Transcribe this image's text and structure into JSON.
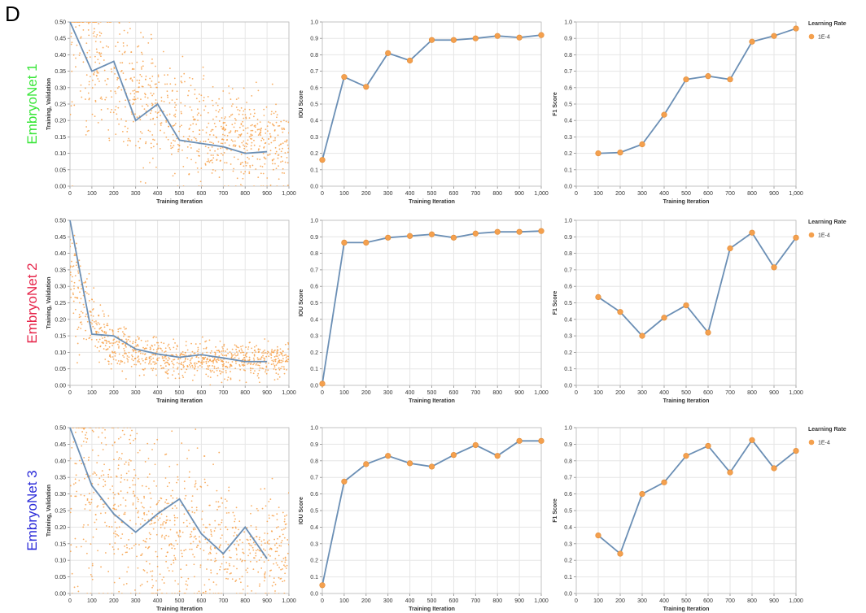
{
  "panel_letter": "D",
  "rows": [
    {
      "label": "EmbryoNet 1",
      "color": "#39e639"
    },
    {
      "label": "EmbryoNet 2",
      "color": "#e6254a"
    },
    {
      "label": "EmbryoNet 3",
      "color": "#2b2bd9"
    }
  ],
  "legend": {
    "title": "Learning Rate",
    "entry": "1E-4",
    "marker_color": "#f4a04e"
  },
  "colors": {
    "line": "#6b8fb5",
    "marker": "#f4a04e",
    "scatter": "#f7a048",
    "grid": "#e6e6e6"
  },
  "chart_data": [
    {
      "type": "line",
      "row": 0,
      "xlabel": "Training Iteration",
      "ylabel": "Training, Validation",
      "xlim": [
        0,
        1000
      ],
      "ylim": [
        0,
        0.5
      ],
      "xticks": [
        "0",
        "100",
        "200",
        "300",
        "400",
        "500",
        "600",
        "700",
        "800",
        "900",
        "1,000"
      ],
      "yticks": [
        "0.00",
        "0.05",
        "0.10",
        "0.15",
        "0.20",
        "0.25",
        "0.30",
        "0.35",
        "0.40",
        "0.45",
        "0.50"
      ],
      "series": [
        {
          "x": [
            0,
            100,
            200,
            300,
            400,
            500,
            600,
            700,
            800,
            900
          ],
          "y": [
            0.5,
            0.35,
            0.38,
            0.2,
            0.25,
            0.14,
            0.13,
            0.12,
            0.1,
            0.105
          ]
        }
      ],
      "scatter": {
        "x0": 0,
        "x1": 1000,
        "a": 0.4,
        "b": 0.11,
        "k": 320,
        "noise": 0.05
      }
    },
    {
      "type": "line",
      "row": 0,
      "xlabel": "Training Iteration",
      "ylabel": "IOU Score",
      "xlim": [
        0,
        1000
      ],
      "ylim": [
        0,
        1.0
      ],
      "xticks": [
        "0",
        "100",
        "200",
        "300",
        "400",
        "500",
        "600",
        "700",
        "800",
        "900",
        "1,000"
      ],
      "yticks": [
        "0.0",
        "0.1",
        "0.2",
        "0.3",
        "0.4",
        "0.5",
        "0.6",
        "0.7",
        "0.8",
        "0.9",
        "1.0"
      ],
      "series": [
        {
          "x": [
            0,
            100,
            200,
            300,
            400,
            500,
            600,
            700,
            800,
            900,
            1000
          ],
          "y": [
            0.16,
            0.665,
            0.605,
            0.81,
            0.765,
            0.89,
            0.89,
            0.9,
            0.915,
            0.905,
            0.92
          ]
        }
      ]
    },
    {
      "type": "line",
      "row": 0,
      "xlabel": "Training Iteration",
      "ylabel": "F1 Score",
      "xlim": [
        0,
        1000
      ],
      "ylim": [
        0,
        1.0
      ],
      "xticks": [
        "0",
        "100",
        "200",
        "300",
        "400",
        "500",
        "600",
        "700",
        "800",
        "900",
        "1,000"
      ],
      "yticks": [
        "0.0",
        "0.1",
        "0.2",
        "0.3",
        "0.4",
        "0.5",
        "0.6",
        "0.7",
        "0.8",
        "0.9",
        "1.0"
      ],
      "series": [
        {
          "x": [
            100,
            200,
            300,
            400,
            500,
            600,
            700,
            800,
            900,
            1000
          ],
          "y": [
            0.2,
            0.205,
            0.255,
            0.435,
            0.65,
            0.67,
            0.65,
            0.88,
            0.915,
            0.96
          ]
        }
      ]
    },
    {
      "type": "line",
      "row": 1,
      "xlabel": "Training Iteration",
      "ylabel": "Training, Validation",
      "xlim": [
        0,
        1000
      ],
      "ylim": [
        0,
        0.5
      ],
      "xticks": [
        "0",
        "100",
        "200",
        "300",
        "400",
        "500",
        "600",
        "700",
        "800",
        "900",
        "1,000"
      ],
      "yticks": [
        "0.00",
        "0.05",
        "0.10",
        "0.15",
        "0.20",
        "0.25",
        "0.30",
        "0.35",
        "0.40",
        "0.45",
        "0.50"
      ],
      "series": [
        {
          "x": [
            0,
            100,
            200,
            300,
            400,
            500,
            600,
            700,
            800,
            900
          ],
          "y": [
            0.5,
            0.155,
            0.15,
            0.11,
            0.095,
            0.085,
            0.093,
            0.083,
            0.072,
            0.072
          ]
        }
      ],
      "scatter": {
        "x0": 0,
        "x1": 1000,
        "a": 0.3,
        "b": 0.075,
        "k": 110,
        "noise": 0.025
      }
    },
    {
      "type": "line",
      "row": 1,
      "xlabel": "Training Iteration",
      "ylabel": "IOU Score",
      "xlim": [
        0,
        1000
      ],
      "ylim": [
        0,
        1.0
      ],
      "xticks": [
        "0",
        "100",
        "200",
        "300",
        "400",
        "500",
        "600",
        "700",
        "800",
        "900",
        "1,000"
      ],
      "yticks": [
        "0.0",
        "0.1",
        "0.2",
        "0.3",
        "0.4",
        "0.5",
        "0.6",
        "0.7",
        "0.8",
        "0.9",
        "1.0"
      ],
      "series": [
        {
          "x": [
            0,
            100,
            200,
            300,
            400,
            500,
            600,
            700,
            800,
            900,
            1000
          ],
          "y": [
            0.01,
            0.865,
            0.865,
            0.895,
            0.905,
            0.915,
            0.895,
            0.92,
            0.93,
            0.93,
            0.935
          ]
        }
      ]
    },
    {
      "type": "line",
      "row": 1,
      "xlabel": "Training Iteration",
      "ylabel": "F1 Score",
      "xlim": [
        0,
        1000
      ],
      "ylim": [
        0,
        1.0
      ],
      "xticks": [
        "0",
        "100",
        "200",
        "300",
        "400",
        "500",
        "600",
        "700",
        "800",
        "900",
        "1,000"
      ],
      "yticks": [
        "0.0",
        "0.1",
        "0.2",
        "0.3",
        "0.4",
        "0.5",
        "0.6",
        "0.7",
        "0.8",
        "0.9",
        "1.0"
      ],
      "series": [
        {
          "x": [
            100,
            200,
            300,
            400,
            500,
            600,
            700,
            800,
            900,
            1000
          ],
          "y": [
            0.535,
            0.445,
            0.3,
            0.41,
            0.485,
            0.32,
            0.83,
            0.925,
            0.715,
            0.895
          ]
        }
      ]
    },
    {
      "type": "line",
      "row": 2,
      "xlabel": "Training Iteration",
      "ylabel": "Training, Validation",
      "xlim": [
        0,
        1000
      ],
      "ylim": [
        0,
        0.5
      ],
      "xticks": [
        "0",
        "100",
        "200",
        "300",
        "400",
        "500",
        "600",
        "700",
        "800",
        "900",
        "1,000"
      ],
      "yticks": [
        "0.00",
        "0.05",
        "0.10",
        "0.15",
        "0.20",
        "0.25",
        "0.30",
        "0.35",
        "0.40",
        "0.45",
        "0.50"
      ],
      "series": [
        {
          "x": [
            0,
            100,
            200,
            300,
            400,
            500,
            600,
            700,
            800,
            900
          ],
          "y": [
            0.5,
            0.325,
            0.24,
            0.185,
            0.24,
            0.285,
            0.18,
            0.12,
            0.2,
            0.105
          ]
        }
      ],
      "scatter": {
        "x0": 0,
        "x1": 1000,
        "a": 0.3,
        "b": 0.12,
        "k": 300,
        "noise": 0.07
      }
    },
    {
      "type": "line",
      "row": 2,
      "xlabel": "Training Iteration",
      "ylabel": "IOU Score",
      "xlim": [
        0,
        1000
      ],
      "ylim": [
        0,
        1.0
      ],
      "xticks": [
        "0",
        "100",
        "200",
        "300",
        "400",
        "500",
        "600",
        "700",
        "800",
        "900",
        "1,000"
      ],
      "yticks": [
        "0.0",
        "0.1",
        "0.2",
        "0.3",
        "0.4",
        "0.5",
        "0.6",
        "0.7",
        "0.8",
        "0.9",
        "1.0"
      ],
      "series": [
        {
          "x": [
            0,
            100,
            200,
            300,
            400,
            500,
            600,
            700,
            800,
            900,
            1000
          ],
          "y": [
            0.05,
            0.675,
            0.78,
            0.83,
            0.785,
            0.765,
            0.835,
            0.895,
            0.83,
            0.92,
            0.92
          ]
        }
      ]
    },
    {
      "type": "line",
      "row": 2,
      "xlabel": "Training Iteration",
      "ylabel": "F1 Score",
      "xlim": [
        0,
        1000
      ],
      "ylim": [
        0,
        1.0
      ],
      "xticks": [
        "0",
        "100",
        "200",
        "300",
        "400",
        "500",
        "600",
        "700",
        "800",
        "900",
        "1,000"
      ],
      "yticks": [
        "0.0",
        "0.1",
        "0.2",
        "0.3",
        "0.4",
        "0.5",
        "0.6",
        "0.7",
        "0.8",
        "0.9",
        "1.0"
      ],
      "series": [
        {
          "x": [
            100,
            200,
            300,
            400,
            500,
            600,
            700,
            800,
            900,
            1000
          ],
          "y": [
            0.35,
            0.24,
            0.6,
            0.67,
            0.83,
            0.89,
            0.73,
            0.925,
            0.755,
            0.86
          ]
        }
      ]
    }
  ]
}
